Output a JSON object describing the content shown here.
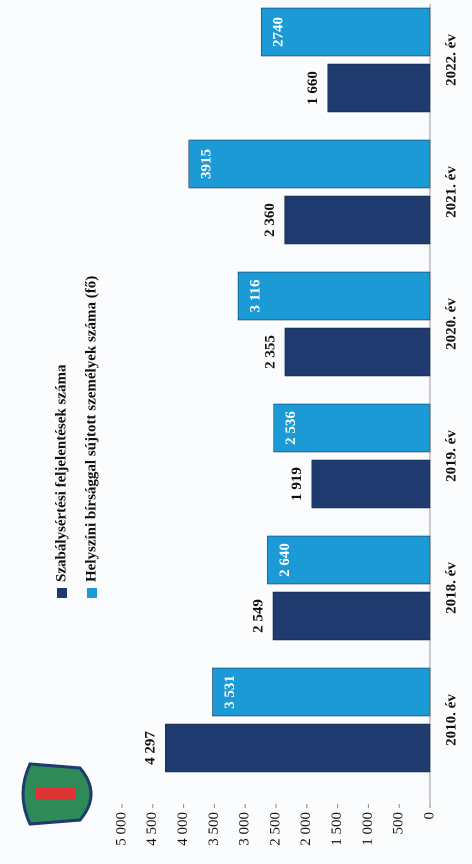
{
  "chart_data": {
    "type": "bar",
    "categories": [
      "2010. év",
      "2018. év",
      "2019. év",
      "2020. év",
      "2021. év",
      "2022. év"
    ],
    "series": [
      {
        "name": "Szabálysértési feljelentések száma",
        "color": "#1f3a6e",
        "values": [
          4297,
          2549,
          1919,
          2355,
          2360,
          1660
        ],
        "value_labels": [
          "4 297",
          "2 549",
          "1 919",
          "2 355",
          "2 360",
          "1 660"
        ]
      },
      {
        "name": "Helyszíni bírsággal sújtott személyek száma (fő)",
        "color": "#1b9ad6",
        "values": [
          3531,
          2640,
          2536,
          3116,
          3915,
          2740
        ],
        "value_labels": [
          "3 531",
          "2 640",
          "2 536",
          "3 116",
          "3915",
          "2740"
        ]
      }
    ],
    "ylim": [
      0,
      5000
    ],
    "yticks": [
      0,
      500,
      {
        "value": 1000,
        "label": "1 000"
      },
      {
        "value": 1500,
        "label": "1 500"
      },
      {
        "value": 2000,
        "label": "2 000"
      },
      {
        "value": 2500,
        "label": "2 500"
      },
      {
        "value": 3000,
        "label": "3 000"
      },
      {
        "value": 3500,
        "label": "3 500"
      },
      {
        "value": 4000,
        "label": "4 000"
      },
      {
        "value": 4500,
        "label": "4 500"
      },
      {
        "value": 5000,
        "label": "5 000"
      }
    ],
    "grid": false
  }
}
